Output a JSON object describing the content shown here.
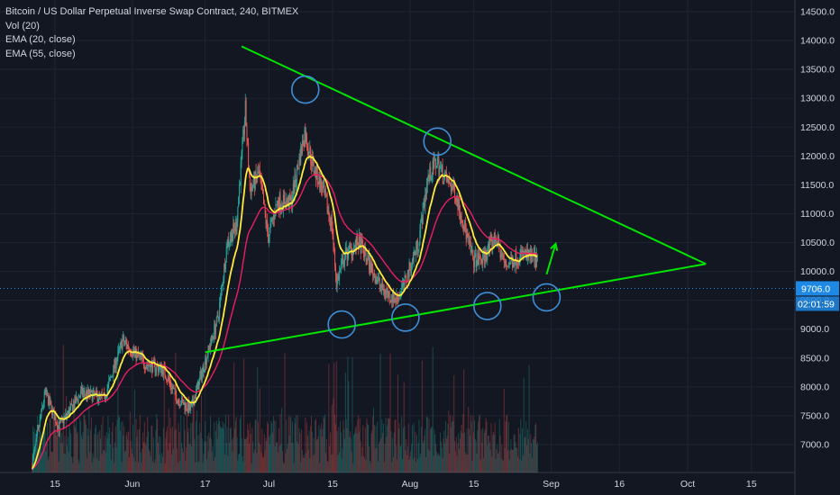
{
  "legend": {
    "title": "Bitcoin / US Dollar Perpetual Inverse Swap Contract, 240, BITMEX",
    "vol": "Vol (20)",
    "ema20": "EMA (20, close)",
    "ema55": "EMA (55, close)"
  },
  "price_tag": {
    "price": "9706.0",
    "countdown": "02:01:59"
  },
  "colors": {
    "background": "#131722",
    "up": "#26a69a",
    "down": "#ef5350",
    "ema20": "#ffeb3b",
    "ema55": "#e91e63",
    "trendline": "#00e600",
    "annotation": "#3d8fd8",
    "price_tag": "#1e88e5",
    "countdown": "#131722"
  },
  "chart_data": {
    "type": "candlestick",
    "title": "",
    "ylim": [
      6600,
      14700
    ],
    "y_ticks": [
      7000,
      7500,
      8000,
      8500,
      9000,
      9500,
      10000,
      10500,
      11000,
      11500,
      12000,
      12500,
      13000,
      13500,
      14000,
      14500
    ],
    "x_ticks": [
      "15",
      "Jun",
      "17",
      "Jul",
      "15",
      "Aug",
      "15",
      "Sep",
      "16",
      "Oct",
      "15"
    ],
    "x_tick_dates": [
      "2019-05-15",
      "2019-06-01",
      "2019-06-17",
      "2019-07-01",
      "2019-07-15",
      "2019-08-01",
      "2019-08-15",
      "2019-09-01",
      "2019-09-16",
      "2019-10-01",
      "2019-10-15"
    ],
    "price_key_points": [
      [
        "2019-05-10",
        6600
      ],
      [
        "2019-05-13",
        7900
      ],
      [
        "2019-05-16",
        7300
      ],
      [
        "2019-05-21",
        7900
      ],
      [
        "2019-05-26",
        7800
      ],
      [
        "2019-05-30",
        8800
      ],
      [
        "2019-06-04",
        8400
      ],
      [
        "2019-06-08",
        8300
      ],
      [
        "2019-06-11",
        7800
      ],
      [
        "2019-06-14",
        7600
      ],
      [
        "2019-06-17",
        8400
      ],
      [
        "2019-06-20",
        9200
      ],
      [
        "2019-06-22",
        10500
      ],
      [
        "2019-06-24",
        10800
      ],
      [
        "2019-06-26",
        12800
      ],
      [
        "2019-06-27",
        11400
      ],
      [
        "2019-06-29",
        11700
      ],
      [
        "2019-07-01",
        10600
      ],
      [
        "2019-07-03",
        11200
      ],
      [
        "2019-07-06",
        11200
      ],
      [
        "2019-07-09",
        12400
      ],
      [
        "2019-07-11",
        11800
      ],
      [
        "2019-07-13",
        11400
      ],
      [
        "2019-07-15",
        10800
      ],
      [
        "2019-07-16",
        9800
      ],
      [
        "2019-07-18",
        10300
      ],
      [
        "2019-07-21",
        10500
      ],
      [
        "2019-07-24",
        10000
      ],
      [
        "2019-07-26",
        9700
      ],
      [
        "2019-07-29",
        9500
      ],
      [
        "2019-07-31",
        9800
      ],
      [
        "2019-08-03",
        10500
      ],
      [
        "2019-08-05",
        11600
      ],
      [
        "2019-08-07",
        11900
      ],
      [
        "2019-08-09",
        11600
      ],
      [
        "2019-08-11",
        11400
      ],
      [
        "2019-08-13",
        10800
      ],
      [
        "2019-08-15",
        10200
      ],
      [
        "2019-08-17",
        10200
      ],
      [
        "2019-08-20",
        10600
      ],
      [
        "2019-08-22",
        10100
      ],
      [
        "2019-08-26",
        10300
      ],
      [
        "2019-08-29",
        10200
      ]
    ],
    "series": [
      {
        "name": "EMA (20, close)"
      },
      {
        "name": "EMA (55, close)"
      },
      {
        "name": "Vol (20)"
      }
    ],
    "trendlines": [
      {
        "from": [
          "2019-06-25",
          13900
        ],
        "to": [
          "2019-10-05",
          10130
        ]
      },
      {
        "from": [
          "2019-06-17",
          8600
        ],
        "to": [
          "2019-10-05",
          10130
        ]
      }
    ],
    "arrow": {
      "from": [
        "2019-08-31",
        9950
      ],
      "to": [
        "2019-09-02",
        10480
      ]
    },
    "annotations_circles": [
      [
        "2019-07-09",
        13150
      ],
      [
        "2019-08-07",
        12250
      ],
      [
        "2019-07-17",
        9080
      ],
      [
        "2019-07-31",
        9200
      ],
      [
        "2019-08-18",
        9400
      ],
      [
        "2019-08-31",
        9550
      ]
    ],
    "current_price": 9706.0,
    "grid": true
  }
}
